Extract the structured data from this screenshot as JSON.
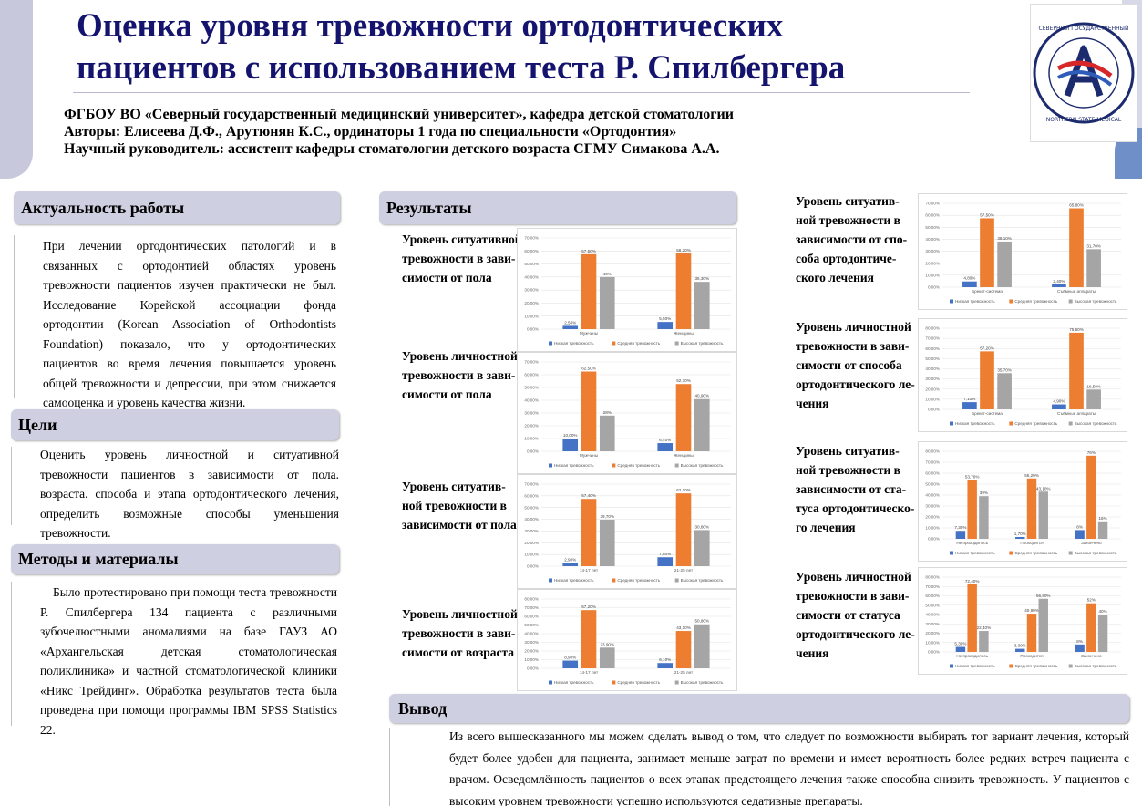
{
  "header": {
    "title_line1": "Оценка уровня тревожности ортодонтических",
    "title_line2": "пациентов с использованием теста Р. Спилбергера",
    "institution": "ФГБОУ ВО «Северный государственный медицинский университет», кафедра детской стоматологии",
    "authors": "Авторы: Елисеева Д.Ф., Арутюнян К.С., ординаторы 1 года по специальности «Ортодонтия»",
    "supervisor": "Научный руководитель: ассистент кафедры стоматологии детского возраста СГМУ Симакова А.А.",
    "logo_text": "СЕВЕРНЫЙ ГОСУДАРСТВЕННЫЙ МЕДИЦИНСКИЙ УНИВЕРСИТЕТ · NORTHERN STATE MEDICAL UNIVERSITY"
  },
  "sections": {
    "relevance": {
      "heading": "Актуальность работы",
      "text": "При лечении ортодонтических патологий и в связанных с ортодонтией областях уровень тревожности пациентов изучен практически не был. Исследование Корейской ассоциации фонда ортодонтии (Korean Association of Orthodontists Foundation) показало, что у ортодонтических пациентов во время лечения повышается уровень общей тревожности и депрессии, при этом снижается самооценка и уровень качества жизни."
    },
    "goals": {
      "heading": "Цели",
      "text": "Оценить уровень личностной и ситуативной тревожности пациентов в зависимости от пола. возраста. способа и этапа ортодонтического лечения, определить возможные способы уменьшения тревожности."
    },
    "methods": {
      "heading": "Методы и материалы",
      "text": "Было протестировано при помощи теста тревожности Р. Спилбергера 134 пациента с различными зубочелюстными аномалиями на базе ГАУЗ АО «Архангельская детская стоматологическая поликлиника» и частной стоматологической клиники «Никс Трейдинг». Обработка результатов теста была проведена при помощи программы IBM SPSS Statistics 22."
    },
    "results": {
      "heading": "Результаты"
    },
    "conclusion": {
      "heading": "Вывод",
      "text": "Из всего вышесказанного мы можем сделать вывод о том, что следует по возможности выбирать тот вариант лечения, который будет более удобен для пациента, занимает меньше затрат по времени и имеет вероятность более редких встреч пациента с врачом. Осведомлённость пациентов о всех этапах предстоящего лечения также способна снизить тревожность. У пациентов с высоким уровнем тревожности успешно используются седативные препараты."
    }
  },
  "colors": {
    "low": "#4472c4",
    "mid": "#ed7d31",
    "high": "#a5a5a5",
    "heading_bg": "#cfcfe2",
    "title": "#14146e"
  },
  "chart_data": [
    {
      "id": "c1",
      "type": "bar",
      "label": "Уровень ситуативной тревожности в зависимости от пола",
      "categories": [
        "Мужчины",
        "Женщины"
      ],
      "series": [
        {
          "name": "Низкая тревожность",
          "values": [
            2.5,
            5.5
          ],
          "labels": [
            "2,50%",
            "5,50%"
          ]
        },
        {
          "name": "Средняя тревожность",
          "values": [
            57.5,
            58.2
          ],
          "labels": [
            "57,50%",
            "58,20%"
          ]
        },
        {
          "name": "Высокая тревожность",
          "values": [
            40,
            36.3
          ],
          "labels": [
            "40%",
            "36,30%"
          ]
        }
      ],
      "ylim": [
        0,
        70
      ],
      "step": 10
    },
    {
      "id": "c2",
      "type": "bar",
      "label": "Уровень личностной тревожности в зависимости от пола",
      "categories": [
        "Мужчины",
        "Женщины"
      ],
      "series": [
        {
          "name": "Низкая тревожность",
          "values": [
            10,
            6.4
          ],
          "labels": [
            "10,00%",
            "6,40%"
          ]
        },
        {
          "name": "Средняя тревожность",
          "values": [
            62.5,
            52.7
          ],
          "labels": [
            "62,50%",
            "52,70%"
          ]
        },
        {
          "name": "Высокая тревожность",
          "values": [
            28,
            40.9
          ],
          "labels": [
            "28%",
            "40,90%"
          ]
        }
      ],
      "ylim": [
        0,
        70
      ],
      "step": 10
    },
    {
      "id": "c3",
      "type": "bar",
      "label": "Уровень ситуативной тревожности в зависимости от пола",
      "categories": [
        "14-17 лет",
        "21-25 лет"
      ],
      "series": [
        {
          "name": "Низкая тревожность",
          "values": [
            2.9,
            7.6
          ],
          "labels": [
            "2,90%",
            "7,60%"
          ]
        },
        {
          "name": "Средняя тревожность",
          "values": [
            57.4,
            62.1
          ],
          "labels": [
            "57,40%",
            "62,10%"
          ]
        },
        {
          "name": "Высокая тревожность",
          "values": [
            39.7,
            30.8
          ],
          "labels": [
            "39,70%",
            "30,80%"
          ]
        }
      ],
      "ylim": [
        0,
        70
      ],
      "step": 10
    },
    {
      "id": "c4",
      "type": "bar",
      "label": "Уровень личностной тревожности в зависимости от возраста",
      "categories": [
        "14-17 лет",
        "21-25 лет"
      ],
      "series": [
        {
          "name": "Низкая тревожность",
          "values": [
            8.9,
            6.1
          ],
          "labels": [
            "8,90%",
            "6,10%"
          ]
        },
        {
          "name": "Средняя тревожность",
          "values": [
            67.2,
            43.1
          ],
          "labels": [
            "67,20%",
            "43,10%"
          ]
        },
        {
          "name": "Высокая тревожность",
          "values": [
            23.9,
            50.8
          ],
          "labels": [
            "23,90%",
            "50,80%"
          ]
        }
      ],
      "ylim": [
        0,
        80
      ],
      "step": 10
    },
    {
      "id": "c5",
      "type": "bar",
      "label": "Уровень ситуативной тревожности в зависимости от способа ортодонтического лечения",
      "categories": [
        "Брекет-система",
        "Съёмные аппараты"
      ],
      "series": [
        {
          "name": "Низкая тревожность",
          "values": [
            4.8,
            2.4
          ],
          "labels": [
            "4,80%",
            "2,40%"
          ]
        },
        {
          "name": "Средняя тревожность",
          "values": [
            57.5,
            65.8
          ],
          "labels": [
            "57,50%",
            "65,80%"
          ]
        },
        {
          "name": "Высокая тревожность",
          "values": [
            38.1,
            31.7
          ],
          "labels": [
            "38,10%",
            "31,70%"
          ]
        }
      ],
      "ylim": [
        0,
        70
      ],
      "step": 10
    },
    {
      "id": "c6",
      "type": "bar",
      "label": "Уровень личностной тревожности в зависимости от способа ортодонтического лечения",
      "categories": [
        "Брекет-система",
        "Съёмные аппараты"
      ],
      "series": [
        {
          "name": "Низкая тревожность",
          "values": [
            7.1,
            4.9
          ],
          "labels": [
            "7,10%",
            "4,90%"
          ]
        },
        {
          "name": "Средняя тревожность",
          "values": [
            57.2,
            75.6
          ],
          "labels": [
            "57,20%",
            "75,60%"
          ]
        },
        {
          "name": "Высокая тревожность",
          "values": [
            35.7,
            19.5
          ],
          "labels": [
            "35,70%",
            "19,50%"
          ]
        }
      ],
      "ylim": [
        0,
        80
      ],
      "step": 10
    },
    {
      "id": "c7",
      "type": "bar",
      "label": "Уровень ситуативной тревожности в зависимости от статуса ортодонтического лечения",
      "categories": [
        "Не проходилось",
        "Проходится",
        "Закончено"
      ],
      "series": [
        {
          "name": "Низкая тревожность",
          "values": [
            7.3,
            1.7,
            8
          ],
          "labels": [
            "7,30%",
            "1,70%",
            "8%"
          ]
        },
        {
          "name": "Средняя тревожность",
          "values": [
            53.7,
            55.2,
            76
          ],
          "labels": [
            "53,70%",
            "55,20%",
            "76%"
          ]
        },
        {
          "name": "Высокая тревожность",
          "values": [
            39,
            43.1,
            16
          ],
          "labels": [
            "39%",
            "43,10%",
            "16%"
          ]
        }
      ],
      "ylim": [
        0,
        80
      ],
      "step": 10
    },
    {
      "id": "c8",
      "type": "bar",
      "label": "Уровень личностной тревожности в зависимости от статуса ортодонтического лечения",
      "categories": [
        "Не проходилось",
        "Проходится",
        "Закончено"
      ],
      "series": [
        {
          "name": "Низкая тревожность",
          "values": [
            5.3,
            3.3,
            8
          ],
          "labels": [
            "5,30%",
            "3,30%",
            "8%"
          ]
        },
        {
          "name": "Средняя тревожность",
          "values": [
            72.4,
            40.9,
            52
          ],
          "labels": [
            "72,40%",
            "40,90%",
            "52%"
          ]
        },
        {
          "name": "Высокая тревожность",
          "values": [
            22.4,
            56.8,
            40
          ],
          "labels": [
            "22,40%",
            "56,80%",
            "40%"
          ]
        }
      ],
      "ylim": [
        0,
        80
      ],
      "step": 10
    }
  ],
  "chart_labels": {
    "c1": [
      "Уровень ситуативной",
      "тревожности в зави-",
      "симости от пола"
    ],
    "c2": [
      "Уровень личностной",
      "тревожности в зави-",
      "симости от пола"
    ],
    "c3": [
      "Уровень ситуатив-",
      "ной тревожности в",
      "зависимости от пола"
    ],
    "c4": [
      "Уровень личностной",
      "тревожности в зави-",
      "симости от возраста"
    ],
    "c5": [
      "Уровень ситуатив-",
      "ной тревожности в",
      "зависимости от спо-",
      "соба ортодонтиче-",
      "ского лечения"
    ],
    "c6": [
      "Уровень личностной",
      "тревожности в зави-",
      "симости от способа",
      "ортодонтического ле-",
      "чения"
    ],
    "c7": [
      "Уровень ситуатив-",
      "ной тревожности в",
      "зависимости от ста-",
      "туса ортодонтическо-",
      "го лечения"
    ],
    "c8": [
      "Уровень личностной",
      "тревожности в зави-",
      "симости от статуса",
      "ортодонтического ле-",
      "чения"
    ]
  }
}
